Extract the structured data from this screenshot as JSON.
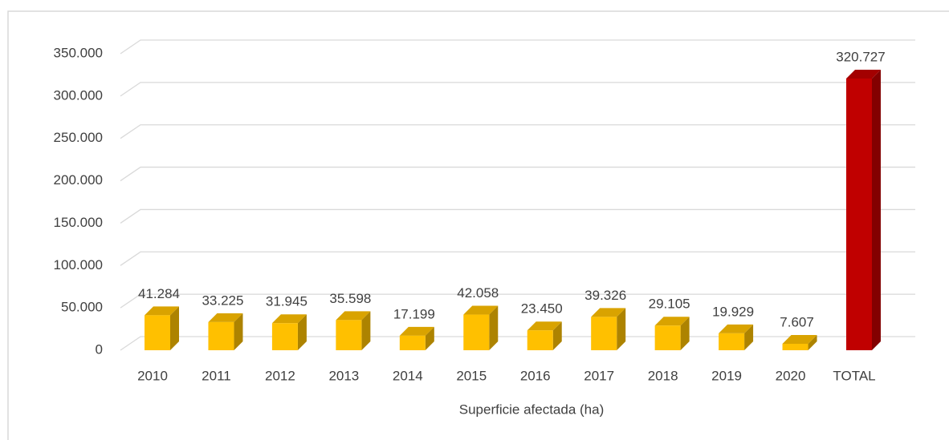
{
  "chart_data": {
    "type": "bar3d",
    "xlabel": "Superficie afectada (ha)",
    "categories": [
      "2010",
      "2011",
      "2012",
      "2013",
      "2014",
      "2015",
      "2016",
      "2017",
      "2018",
      "2019",
      "2020",
      "TOTAL"
    ],
    "values": [
      41284,
      33225,
      31945,
      35598,
      17199,
      42058,
      23450,
      39326,
      29105,
      19929,
      7607,
      320727
    ],
    "value_labels": [
      "41.284",
      "33.225",
      "31.945",
      "35.598",
      "17.199",
      "42.058",
      "23.450",
      "39.326",
      "29.105",
      "19.929",
      "7.607",
      "320.727"
    ],
    "colors": [
      "#FFC000",
      "#FFC000",
      "#FFC000",
      "#FFC000",
      "#FFC000",
      "#FFC000",
      "#FFC000",
      "#FFC000",
      "#FFC000",
      "#FFC000",
      "#FFC000",
      "#C00000"
    ],
    "ylim": [
      0,
      350000
    ],
    "yticks": [
      0,
      {
        "value": 50000,
        "label": "50.000"
      },
      {
        "value": 100000,
        "label": "100.000"
      },
      {
        "value": 150000,
        "label": "150.000"
      },
      {
        "value": 200000,
        "label": "200.000"
      },
      {
        "value": 250000,
        "label": "250.000"
      },
      {
        "value": 300000,
        "label": "300.000"
      },
      {
        "value": 350000,
        "label": "350.000"
      }
    ],
    "grid": true
  }
}
